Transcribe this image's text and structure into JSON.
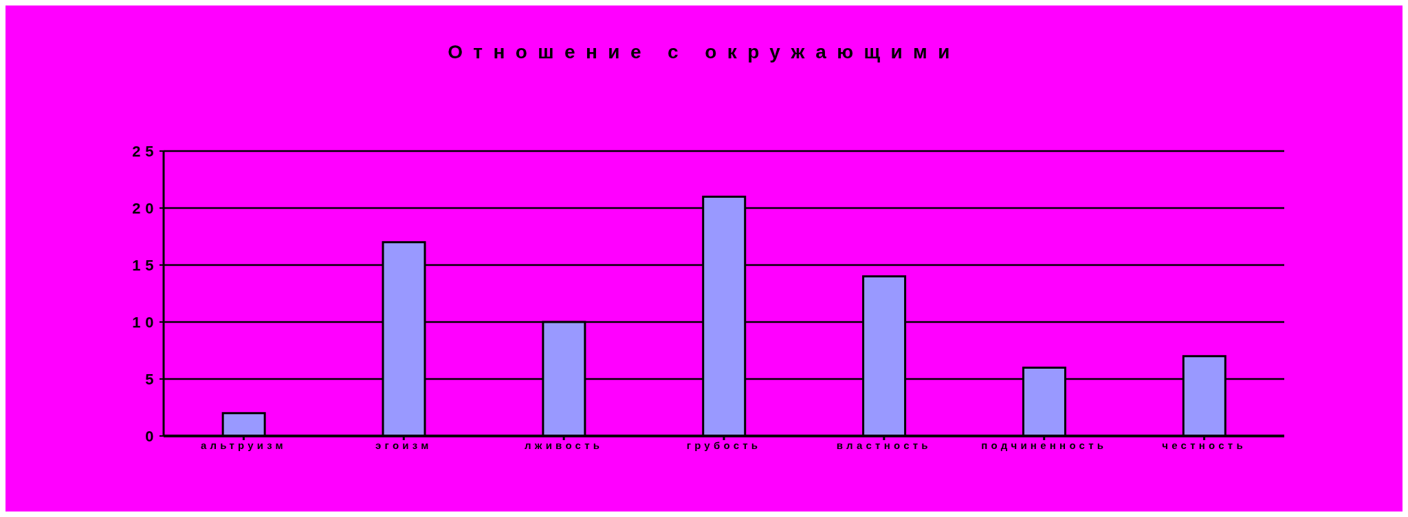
{
  "chart_data": {
    "type": "bar",
    "title": "Отношение с окружающими",
    "categories": [
      "альтруизм",
      "эгоизм",
      "лживость",
      "грубость",
      "властность",
      "подчиненность",
      "честность"
    ],
    "values": [
      2,
      17,
      10,
      21,
      14,
      6,
      7
    ],
    "color": "#9999ff",
    "ylim": [
      0,
      25
    ],
    "yticks": [
      0,
      5,
      10,
      15,
      20,
      25
    ],
    "grid": "y"
  }
}
